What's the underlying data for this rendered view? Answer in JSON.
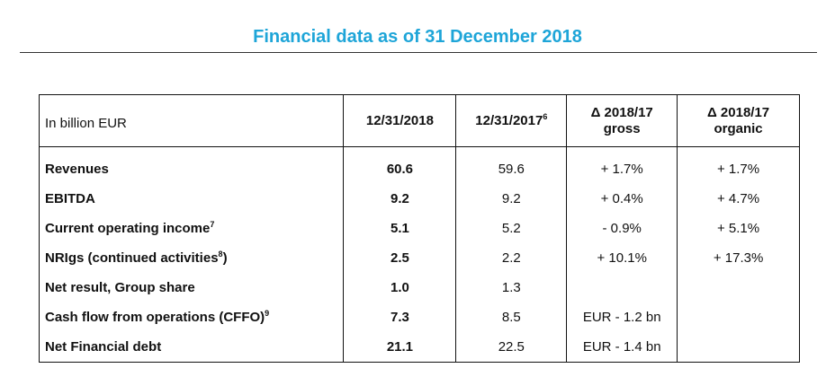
{
  "title": "Financial data as of 31 December 2018",
  "table": {
    "headers": [
      {
        "text": "In billion EUR",
        "sup": ""
      },
      {
        "text": "12/31/2018",
        "sup": ""
      },
      {
        "text": "12/31/2017",
        "sup": "6"
      },
      {
        "line1": "Δ 2018/17",
        "line2": "gross"
      },
      {
        "line1": "Δ 2018/17",
        "line2": "organic"
      }
    ],
    "rows": [
      {
        "label": "Revenues",
        "sup": "",
        "v2018": "60.6",
        "v2017": "59.6",
        "gross": "+ 1.7%",
        "organic": "+ 1.7%"
      },
      {
        "label": "EBITDA",
        "sup": "",
        "v2018": "9.2",
        "v2017": "9.2",
        "gross": "+ 0.4%",
        "organic": "+ 4.7%"
      },
      {
        "label": "Current operating income",
        "sup": "7",
        "v2018": "5.1",
        "v2017": "5.2",
        "gross": "- 0.9%",
        "organic": "+ 5.1%"
      },
      {
        "label": "NRIgs (continued activities",
        "sup": "8",
        "suffix": ")",
        "v2018": "2.5",
        "v2017": "2.2",
        "gross": "+ 10.1%",
        "organic": "+ 17.3%"
      },
      {
        "label": "Net result, Group share",
        "sup": "",
        "v2018": "1.0",
        "v2017": "1.3",
        "gross": "",
        "organic": ""
      },
      {
        "label": "Cash flow from operations (CFFO)",
        "sup": "9",
        "v2018": "7.3",
        "v2017": "8.5",
        "gross": "EUR - 1.2 bn",
        "organic": ""
      },
      {
        "label": "Net Financial debt",
        "sup": "",
        "v2018": "21.1",
        "v2017": "22.5",
        "gross": "EUR - 1.4 bn",
        "organic": ""
      }
    ]
  }
}
